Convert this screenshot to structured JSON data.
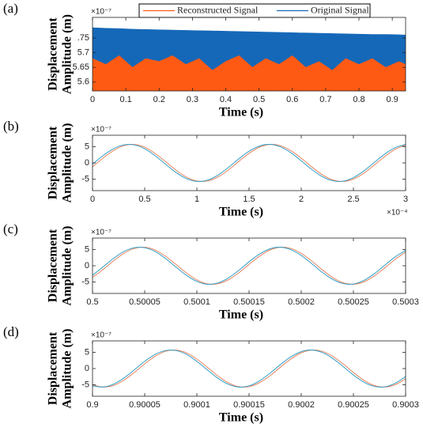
{
  "chart_data": [
    {
      "type": "area",
      "label": "(a)",
      "y_exponent": "×10⁻⁷",
      "xlabel": "Time (s)",
      "ylabel": [
        "Displacement",
        "Amplitude (m)"
      ],
      "x": [
        0,
        0.04,
        0.08,
        0.12,
        0.16,
        0.2,
        0.24,
        0.28,
        0.32,
        0.36,
        0.4,
        0.44,
        0.48,
        0.52,
        0.56,
        0.6,
        0.64,
        0.68,
        0.72,
        0.76,
        0.8,
        0.84,
        0.88,
        0.92,
        0.94
      ],
      "series": [
        {
          "name": "Original Signal",
          "color": "#1568b8",
          "values": [
            5.785,
            5.783,
            5.782,
            5.78,
            5.779,
            5.778,
            5.777,
            5.776,
            5.775,
            5.774,
            5.773,
            5.772,
            5.771,
            5.77,
            5.769,
            5.768,
            5.767,
            5.766,
            5.765,
            5.764,
            5.763,
            5.762,
            5.762,
            5.761,
            5.76
          ]
        },
        {
          "name": "Reconstructed Signal",
          "color": "#ff5a14",
          "values": [
            5.68,
            5.66,
            5.69,
            5.65,
            5.68,
            5.67,
            5.69,
            5.66,
            5.68,
            5.64,
            5.67,
            5.69,
            5.65,
            5.68,
            5.66,
            5.69,
            5.65,
            5.67,
            5.64,
            5.68,
            5.66,
            5.68,
            5.65,
            5.67,
            5.66
          ]
        }
      ],
      "xlim": [
        0,
        0.94
      ],
      "xticks": [
        0,
        0.1,
        0.2,
        0.3,
        0.4,
        0.5,
        0.6,
        0.7,
        0.8,
        0.9
      ],
      "ylim": [
        5.57,
        5.82
      ],
      "yticks": [
        5.6,
        5.65,
        5.7,
        {
          "value": 5.75,
          "label": ".75"
        }
      ]
    },
    {
      "type": "line",
      "label": "(b)",
      "y_exponent": "×10⁻⁷",
      "x_exponent": "×10⁻⁴",
      "xlabel": "Time (s)",
      "ylabel": [
        "Displacement",
        "Amplitude (m)"
      ],
      "x": [
        0,
        0.1,
        0.2,
        0.3,
        0.4,
        0.5,
        0.6,
        0.7,
        0.8,
        0.9,
        1,
        1.1,
        1.2,
        1.3,
        1.4,
        1.5,
        1.6,
        1.7,
        1.8,
        1.9,
        2,
        2.1,
        2.2,
        2.3,
        2.4,
        2.5,
        2.6,
        2.7,
        2.8,
        2.9,
        3
      ],
      "series": [
        {
          "color": "#e8825e",
          "values": [
            -1.19,
            1.45,
            3.79,
            5.3,
            5.67,
            4.82,
            2.92,
            0.4,
            -2.22,
            -4.35,
            -5.55,
            -5.54,
            -4.34,
            -2.21,
            0.41,
            2.93,
            4.83,
            5.68,
            5.3,
            3.78,
            1.45,
            -1.2,
            -3.59,
            -5.2,
            -5.69,
            -4.95,
            -3.14,
            -0.65,
            1.97,
            4.18,
            5.48
          ]
        },
        {
          "color": "#2f9fc8",
          "values": [
            -0.4,
            2.21,
            4.35,
            5.54,
            5.54,
            4.35,
            2.21,
            -0.4,
            -2.93,
            -4.82,
            -5.68,
            -5.3,
            -3.78,
            -1.45,
            1.2,
            3.59,
            5.2,
            5.69,
            4.96,
            3.15,
            0.66,
            -1.97,
            -4.18,
            -5.48,
            -5.6,
            -4.51,
            -2.45,
            0.15,
            2.71,
            4.68,
            5.65
          ]
        }
      ],
      "xlim": [
        0,
        3
      ],
      "xticks": [
        0,
        0.5,
        1,
        1.5,
        2,
        2.5,
        3
      ],
      "ylim": [
        -8.5,
        8.5
      ],
      "yticks": [
        -5,
        0,
        5
      ]
    },
    {
      "type": "line",
      "label": "(c)",
      "y_exponent": "×10⁻⁷",
      "xlabel": "Time (s)",
      "ylabel": [
        "Displacement",
        "Amplitude (m)"
      ],
      "x": [
        0.5,
        0.50001,
        0.50002,
        0.50003,
        0.50004,
        0.50005,
        0.50006,
        0.50007,
        0.50008,
        0.50009,
        0.5001,
        0.50011,
        0.50012,
        0.50013,
        0.50014,
        0.50015,
        0.50016,
        0.50017,
        0.50018,
        0.50019,
        0.5002,
        0.50021,
        0.50022,
        0.50023,
        0.50024,
        0.50025,
        0.50026,
        0.50027,
        0.50028,
        0.50029,
        0.5003
      ],
      "series": [
        {
          "color": "#e8825e",
          "values": [
            -3.58,
            -1.19,
            1.45,
            3.79,
            5.3,
            5.67,
            4.82,
            2.92,
            0.4,
            -2.22,
            -4.35,
            -5.55,
            -5.54,
            -4.34,
            -2.21,
            0.41,
            2.93,
            4.83,
            5.68,
            5.3,
            3.78,
            1.45,
            -1.2,
            -3.59,
            -5.2,
            -5.69,
            -4.95,
            -3.14,
            -0.65,
            1.97,
            4.18
          ]
        },
        {
          "color": "#2f9fc8",
          "values": [
            -2.93,
            -0.4,
            2.21,
            4.35,
            5.54,
            5.54,
            4.35,
            2.21,
            -0.4,
            -2.93,
            -4.82,
            -5.68,
            -5.3,
            -3.78,
            -1.45,
            1.2,
            3.59,
            5.2,
            5.69,
            4.96,
            3.15,
            0.66,
            -1.97,
            -4.18,
            -5.48,
            -5.6,
            -4.51,
            -2.45,
            0.15,
            2.71,
            4.68
          ]
        }
      ],
      "xlim": [
        0.5,
        0.5003
      ],
      "xticks": [
        0.5,
        0.50005,
        0.5001,
        0.50015,
        0.5002,
        0.50025,
        0.5003
      ],
      "ylim": [
        -8.5,
        8.5
      ],
      "yticks": [
        -5,
        0,
        5
      ]
    },
    {
      "type": "line",
      "label": "(d)",
      "y_exponent": "×10⁻⁷",
      "xlabel": "Time (s)",
      "ylabel": [
        "Displacement",
        "Amplitude (m)"
      ],
      "x": [
        0.9,
        0.90001,
        0.90002,
        0.90003,
        0.90004,
        0.90005,
        0.90006,
        0.90007,
        0.90008,
        0.90009,
        0.9001,
        0.90011,
        0.90012,
        0.90013,
        0.90014,
        0.90015,
        0.90016,
        0.90017,
        0.90018,
        0.90019,
        0.9002,
        0.90021,
        0.90022,
        0.90023,
        0.90024,
        0.90025,
        0.90026,
        0.90027,
        0.90028,
        0.90029,
        0.9003
      ],
      "series": [
        {
          "color": "#e8825e",
          "values": [
            -4.96,
            -5.69,
            -5.2,
            -3.58,
            -1.19,
            1.45,
            3.79,
            5.3,
            5.67,
            4.82,
            2.92,
            0.4,
            -2.22,
            -4.35,
            -5.55,
            -5.54,
            -4.34,
            -2.21,
            0.41,
            2.93,
            4.83,
            5.68,
            5.3,
            3.78,
            1.45,
            -1.2,
            -3.59,
            -5.2,
            -5.69,
            -4.95,
            -3.14
          ]
        },
        {
          "color": "#2f9fc8",
          "values": [
            -5.3,
            -5.67,
            -4.82,
            -2.93,
            -0.4,
            2.21,
            4.35,
            5.54,
            5.54,
            4.35,
            2.21,
            -0.4,
            -2.93,
            -4.82,
            -5.68,
            -5.3,
            -3.78,
            -1.45,
            1.2,
            3.59,
            5.2,
            5.69,
            4.96,
            3.15,
            0.66,
            -1.97,
            -4.18,
            -5.48,
            -5.6,
            -4.51,
            -2.45
          ]
        }
      ],
      "xlim": [
        0.9,
        0.9003
      ],
      "xticks": [
        0.9,
        0.90005,
        0.9001,
        0.90015,
        0.9002,
        0.90025,
        0.9003
      ],
      "ylim": [
        -8.5,
        8.5
      ],
      "yticks": [
        -5,
        0,
        5
      ]
    }
  ]
}
